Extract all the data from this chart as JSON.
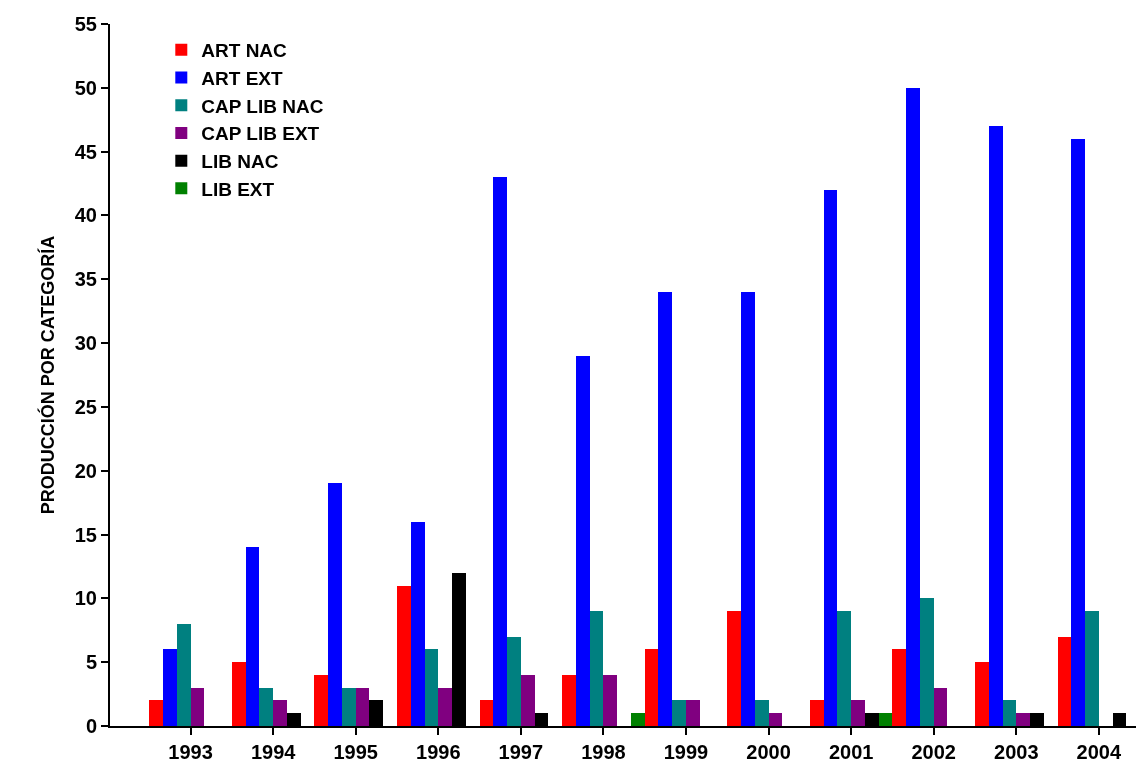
{
  "chart_data": {
    "type": "bar",
    "ylabel": "PRODUCCIÓN POR CATEGORÍA",
    "categories": [
      "1993",
      "1994",
      "1995",
      "1996",
      "1997",
      "1998",
      "1999",
      "2000",
      "2001",
      "2002",
      "2003",
      "2004"
    ],
    "series": [
      {
        "name": "ART NAC",
        "color": "#ff0000",
        "values": [
          2,
          5,
          4,
          11,
          2,
          4,
          6,
          9,
          2,
          6,
          5,
          7
        ]
      },
      {
        "name": "ART EXT",
        "color": "#0000ff",
        "values": [
          6,
          14,
          19,
          16,
          43,
          29,
          34,
          34,
          42,
          50,
          47,
          46
        ]
      },
      {
        "name": "CAP LIB NAC",
        "color": "#008080",
        "values": [
          8,
          3,
          3,
          6,
          7,
          9,
          2,
          2,
          9,
          10,
          2,
          9
        ]
      },
      {
        "name": "CAP LIB EXT",
        "color": "#800080",
        "values": [
          3,
          2,
          3,
          3,
          4,
          4,
          2,
          1,
          2,
          3,
          1,
          0
        ]
      },
      {
        "name": "LIB NAC",
        "color": "#000000",
        "values": [
          0,
          1,
          2,
          12,
          1,
          0,
          0,
          0,
          1,
          0,
          1,
          1
        ]
      },
      {
        "name": "LIB EXT",
        "color": "#008000",
        "values": [
          0,
          0,
          0,
          0,
          0,
          1,
          0,
          0,
          1,
          0,
          0,
          0
        ]
      }
    ],
    "ylim": [
      0,
      55
    ],
    "yticks": [
      0,
      5,
      10,
      15,
      20,
      25,
      30,
      35,
      40,
      45,
      50,
      55
    ],
    "legend": "top left"
  }
}
